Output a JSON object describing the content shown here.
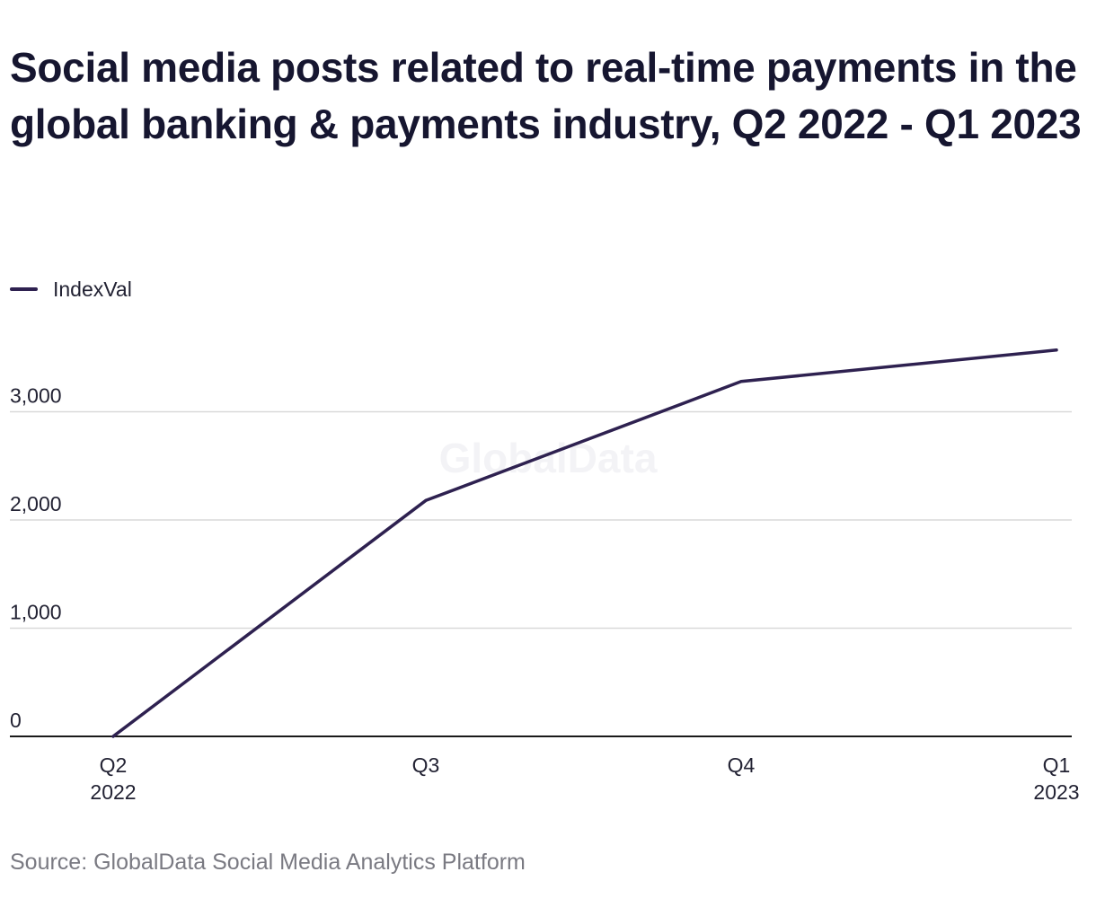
{
  "title": "Social media posts related to real-time payments in the global banking & payments industry, Q2 2022 - Q1 2023",
  "source": "Source: GlobalData Social Media Analytics Platform",
  "watermark": "GlobalData",
  "colors": {
    "series": "#2e2150",
    "grid": "#d9d9d9",
    "axis": "#1a1a1a"
  },
  "chart_data": {
    "type": "line",
    "x": [
      [
        "Q2",
        "2022"
      ],
      [
        "Q3"
      ],
      [
        "Q4"
      ],
      [
        "Q1",
        "2023"
      ]
    ],
    "series": [
      {
        "name": "IndexVal",
        "values": [
          0,
          2180,
          3280,
          3570
        ]
      }
    ],
    "yticks": [
      0,
      1000,
      2000,
      3000
    ],
    "ytick_labels": [
      "0",
      "1,000",
      "2,000",
      "3,000"
    ],
    "ylim": [
      0,
      3700
    ],
    "grid": true,
    "legend": "top-left"
  }
}
